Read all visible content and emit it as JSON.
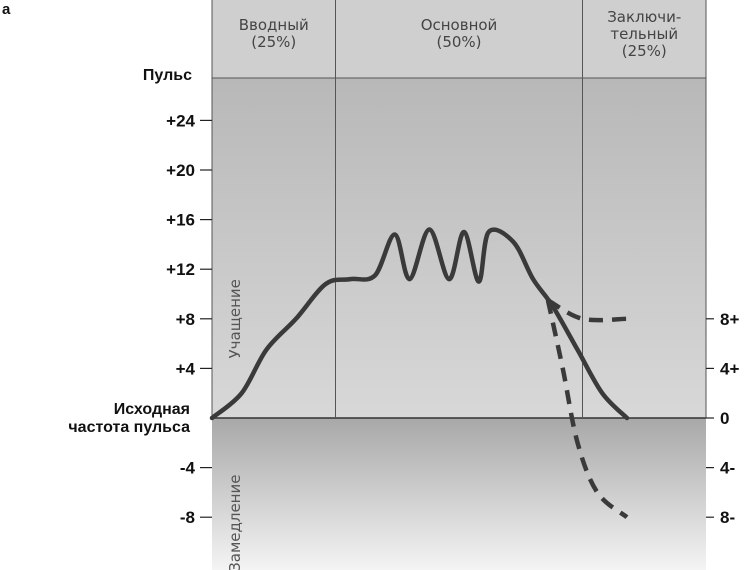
{
  "chart_data": {
    "type": "line",
    "panel_letter": "а",
    "phases": [
      {
        "name": "Вводный",
        "share": "(25%)",
        "x_from": 0,
        "x_to": 25
      },
      {
        "name": "Основной",
        "share": "(50%)",
        "x_from": 25,
        "x_to": 75
      },
      {
        "name": "Заключи-\nтельный",
        "share": "(25%)",
        "x_from": 75,
        "x_to": 100
      }
    ],
    "y_axis_title": "Пульс",
    "y_ticks_left": [
      {
        "value": 24,
        "label": "+24"
      },
      {
        "value": 20,
        "label": "+20"
      },
      {
        "value": 16,
        "label": "+16"
      },
      {
        "value": 12,
        "label": "+12"
      },
      {
        "value": 8,
        "label": "+8"
      },
      {
        "value": 4,
        "label": "+4"
      },
      {
        "value": 0,
        "label": "Исходная\nчастота пульса"
      },
      {
        "value": -4,
        "label": "-4"
      },
      {
        "value": -8,
        "label": "-8"
      }
    ],
    "y_ticks_right": [
      {
        "value": 8,
        "label": "8+"
      },
      {
        "value": 4,
        "label": "4+"
      },
      {
        "value": 0,
        "label": "0"
      },
      {
        "value": -4,
        "label": "4-"
      },
      {
        "value": -8,
        "label": "8-"
      }
    ],
    "zone_labels": {
      "above_zero": "Учащение",
      "below_zero": "Замедление"
    },
    "ylim": [
      -11,
      28
    ],
    "xlim": [
      0,
      100
    ],
    "series": [
      {
        "style": "solid",
        "points": [
          [
            0,
            0
          ],
          [
            6,
            2
          ],
          [
            11,
            5.5
          ],
          [
            17,
            8
          ],
          [
            23,
            10.8
          ],
          [
            28,
            11.2
          ],
          [
            33,
            11.5
          ],
          [
            37,
            14.8
          ],
          [
            40,
            11.2
          ],
          [
            44,
            15.2
          ],
          [
            48,
            11.2
          ],
          [
            51,
            15
          ],
          [
            54,
            11
          ],
          [
            56,
            15
          ],
          [
            61,
            14.2
          ],
          [
            65,
            11.2
          ],
          [
            69,
            9
          ],
          [
            74,
            5.5
          ],
          [
            79,
            2
          ],
          [
            84,
            0
          ]
        ]
      },
      {
        "style": "dashed",
        "points": [
          [
            68,
            9.5
          ],
          [
            75,
            8
          ],
          [
            84,
            8
          ]
        ]
      },
      {
        "style": "dashed",
        "points": [
          [
            68,
            9.5
          ],
          [
            71,
            4
          ],
          [
            74,
            -2
          ],
          [
            78,
            -6
          ],
          [
            84,
            -8
          ]
        ]
      }
    ]
  }
}
